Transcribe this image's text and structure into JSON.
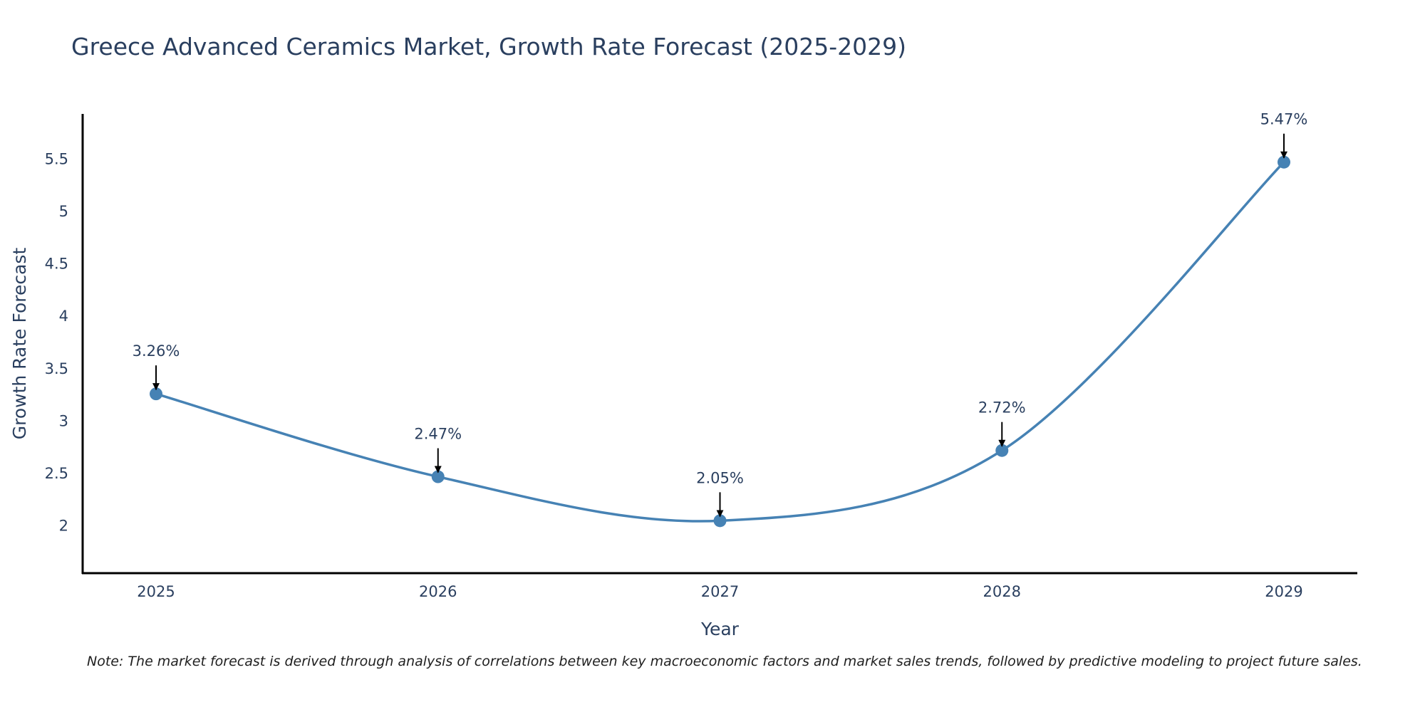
{
  "chart_data": {
    "type": "line",
    "title": "Greece Advanced Ceramics Market, Growth Rate Forecast (2025-2029)",
    "xlabel": "Year",
    "ylabel": "Growth Rate Forecast",
    "categories": [
      "2025",
      "2026",
      "2027",
      "2028",
      "2029"
    ],
    "values": [
      3.26,
      2.47,
      2.05,
      2.72,
      5.47
    ],
    "data_labels": [
      "3.26%",
      "2.47%",
      "2.05%",
      "2.72%",
      "5.47%"
    ],
    "y_ticks": [
      2,
      2.5,
      3,
      3.5,
      4,
      4.5,
      5,
      5.5
    ],
    "y_tick_labels": [
      "2",
      "2.5",
      "3",
      "3.5",
      "4",
      "4.5",
      "5",
      "5.5"
    ],
    "ylim": [
      1.55,
      5.93
    ],
    "grid": false,
    "line_shape": "spline",
    "line_color": "#4682b4",
    "marker_color": "#4682b4",
    "note": "Note: The market forecast is derived through analysis of correlations between key macroeconomic factors and market sales trends, followed by predictive modeling to project future sales."
  }
}
